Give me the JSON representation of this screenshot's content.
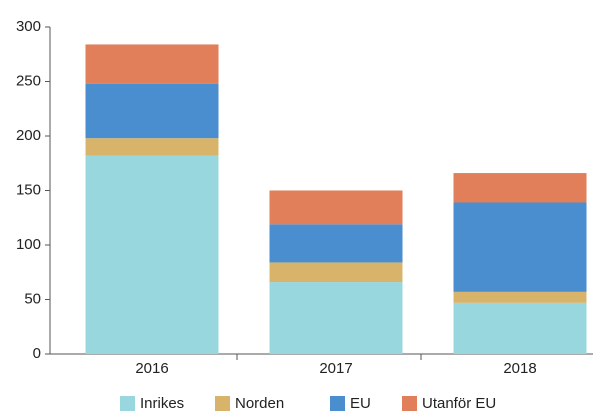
{
  "chart_data": {
    "type": "stacked_bar",
    "categories": [
      "2016",
      "2017",
      "2018"
    ],
    "series": [
      {
        "name": "Inrikes",
        "color": "#98d7de",
        "values": [
          182,
          66,
          47
        ]
      },
      {
        "name": "Norden",
        "color": "#d8b46a",
        "values": [
          16,
          18,
          10
        ]
      },
      {
        "name": "EU",
        "color": "#4a8ecf",
        "values": [
          50,
          35,
          82
        ]
      },
      {
        "name": "Utanför EU",
        "color": "#e07f5a",
        "values": [
          36,
          31,
          27
        ]
      }
    ],
    "ylim": [
      0,
      300
    ],
    "yticks": [
      0,
      50,
      100,
      150,
      200,
      250,
      300
    ],
    "grid": false,
    "legend": "bottom"
  }
}
